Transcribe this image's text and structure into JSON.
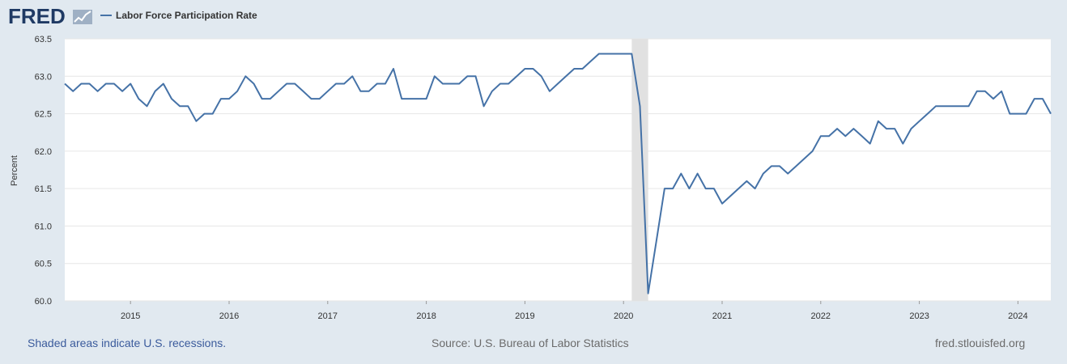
{
  "header": {
    "logo_text": "FRED",
    "legend_label": "Labor Force Participation Rate"
  },
  "colors": {
    "series": "#4572a7",
    "background": "#e1e9f0",
    "plot_background": "#ffffff",
    "recession": "#e1e1e1",
    "gridline": "#e6e6e6",
    "footer_link": "#3b5b9c",
    "footer_text": "#6b6b6b"
  },
  "footer": {
    "recession_note": "Shaded areas indicate U.S. recessions.",
    "source": "Source: U.S. Bureau of Labor Statistics",
    "site": "fred.stlouisfed.org"
  },
  "chart_data": {
    "type": "line",
    "title": "",
    "xlabel": "",
    "ylabel": "Percent",
    "ylim": [
      60.0,
      63.5
    ],
    "y_ticks": [
      "60.0",
      "60.5",
      "61.0",
      "61.5",
      "62.0",
      "62.5",
      "63.0",
      "63.5"
    ],
    "x_ticks": [
      "2015",
      "2016",
      "2017",
      "2018",
      "2019",
      "2020",
      "2021",
      "2022",
      "2023",
      "2024"
    ],
    "x_range": [
      "2014-05",
      "2024-05"
    ],
    "recessions": [
      {
        "start": "2020-02",
        "end": "2020-04"
      }
    ],
    "grid": true,
    "legend_placement": "top-left",
    "series": [
      {
        "name": "Labor Force Participation Rate",
        "x": [
          "2014-05",
          "2014-06",
          "2014-07",
          "2014-08",
          "2014-09",
          "2014-10",
          "2014-11",
          "2014-12",
          "2015-01",
          "2015-02",
          "2015-03",
          "2015-04",
          "2015-05",
          "2015-06",
          "2015-07",
          "2015-08",
          "2015-09",
          "2015-10",
          "2015-11",
          "2015-12",
          "2016-01",
          "2016-02",
          "2016-03",
          "2016-04",
          "2016-05",
          "2016-06",
          "2016-07",
          "2016-08",
          "2016-09",
          "2016-10",
          "2016-11",
          "2016-12",
          "2017-01",
          "2017-02",
          "2017-03",
          "2017-04",
          "2017-05",
          "2017-06",
          "2017-07",
          "2017-08",
          "2017-09",
          "2017-10",
          "2017-11",
          "2017-12",
          "2018-01",
          "2018-02",
          "2018-03",
          "2018-04",
          "2018-05",
          "2018-06",
          "2018-07",
          "2018-08",
          "2018-09",
          "2018-10",
          "2018-11",
          "2018-12",
          "2019-01",
          "2019-02",
          "2019-03",
          "2019-04",
          "2019-05",
          "2019-06",
          "2019-07",
          "2019-08",
          "2019-09",
          "2019-10",
          "2019-11",
          "2019-12",
          "2020-01",
          "2020-02",
          "2020-03",
          "2020-04",
          "2020-05",
          "2020-06",
          "2020-07",
          "2020-08",
          "2020-09",
          "2020-10",
          "2020-11",
          "2020-12",
          "2021-01",
          "2021-02",
          "2021-03",
          "2021-04",
          "2021-05",
          "2021-06",
          "2021-07",
          "2021-08",
          "2021-09",
          "2021-10",
          "2021-11",
          "2021-12",
          "2022-01",
          "2022-02",
          "2022-03",
          "2022-04",
          "2022-05",
          "2022-06",
          "2022-07",
          "2022-08",
          "2022-09",
          "2022-10",
          "2022-11",
          "2022-12",
          "2023-01",
          "2023-02",
          "2023-03",
          "2023-04",
          "2023-05",
          "2023-06",
          "2023-07",
          "2023-08",
          "2023-09",
          "2023-10",
          "2023-11",
          "2023-12",
          "2024-01",
          "2024-02",
          "2024-03",
          "2024-04",
          "2024-05"
        ],
        "values": [
          62.9,
          62.8,
          62.9,
          62.9,
          62.8,
          62.9,
          62.9,
          62.8,
          62.9,
          62.7,
          62.6,
          62.8,
          62.9,
          62.7,
          62.6,
          62.6,
          62.4,
          62.5,
          62.5,
          62.7,
          62.7,
          62.8,
          63.0,
          62.9,
          62.7,
          62.7,
          62.8,
          62.9,
          62.9,
          62.8,
          62.7,
          62.7,
          62.8,
          62.9,
          62.9,
          63.0,
          62.8,
          62.8,
          62.9,
          62.9,
          63.1,
          62.7,
          62.7,
          62.7,
          62.7,
          63.0,
          62.9,
          62.9,
          62.9,
          63.0,
          63.0,
          62.6,
          62.8,
          62.9,
          62.9,
          63.0,
          63.1,
          63.1,
          63.0,
          62.8,
          62.9,
          63.0,
          63.1,
          63.1,
          63.2,
          63.3,
          63.3,
          63.3,
          63.3,
          63.3,
          62.6,
          60.1,
          60.8,
          61.5,
          61.5,
          61.7,
          61.5,
          61.7,
          61.5,
          61.5,
          61.3,
          61.4,
          61.5,
          61.6,
          61.5,
          61.7,
          61.8,
          61.8,
          61.7,
          61.8,
          61.9,
          62.0,
          62.2,
          62.2,
          62.3,
          62.2,
          62.3,
          62.2,
          62.1,
          62.4,
          62.3,
          62.3,
          62.1,
          62.3,
          62.4,
          62.5,
          62.6,
          62.6,
          62.6,
          62.6,
          62.6,
          62.8,
          62.8,
          62.7,
          62.8,
          62.5,
          62.5,
          62.5,
          62.7,
          62.7,
          62.5
        ]
      }
    ]
  }
}
